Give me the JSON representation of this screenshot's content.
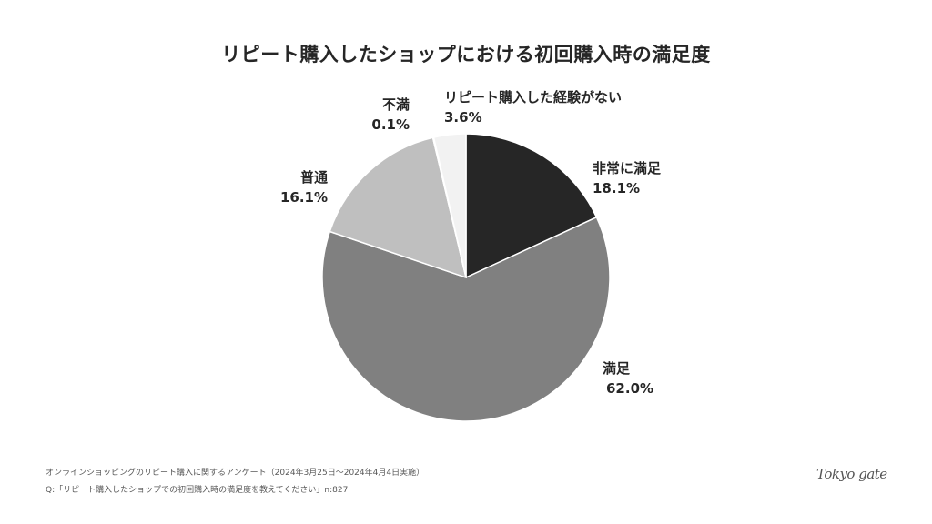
{
  "title": "リピート購入したショップにおける初回購入時の満足度",
  "chart_data": {
    "type": "pie",
    "title": "リピート購入したショップにおける初回購入時の満足度",
    "categories": [
      "非常に満足",
      "満足",
      "普通",
      "不満",
      "リピート購入した経験がない"
    ],
    "values": [
      18.1,
      62.0,
      16.1,
      0.1,
      3.6
    ],
    "unit": "%",
    "colors": [
      "#262626",
      "#808080",
      "#bfbfbf",
      "#7f7f7f",
      "#f2f2f2"
    ],
    "start_angle": "12 o'clock",
    "direction": "clockwise",
    "legend": "none (direct labels)"
  },
  "labels": {
    "very_satisfied": {
      "name": "非常に満足",
      "value": "18.1%"
    },
    "satisfied": {
      "name": "満足",
      "value": "62.0%"
    },
    "neutral": {
      "name": "普通",
      "value": "16.1%"
    },
    "dissatisfied": {
      "name": "不満",
      "value": "0.1%"
    },
    "no_experience": {
      "name": "リピート購入した経験がない",
      "value": "3.6%"
    }
  },
  "footer": {
    "line1": "オンラインショッピングのリピート購入に関するアンケート（2024年3月25日〜2024年4月4日実施）",
    "line2": "Q:「リピート購入したショップでの初回購入時の満足度を教えてください」n:827"
  },
  "logo": "Tokyo gate"
}
